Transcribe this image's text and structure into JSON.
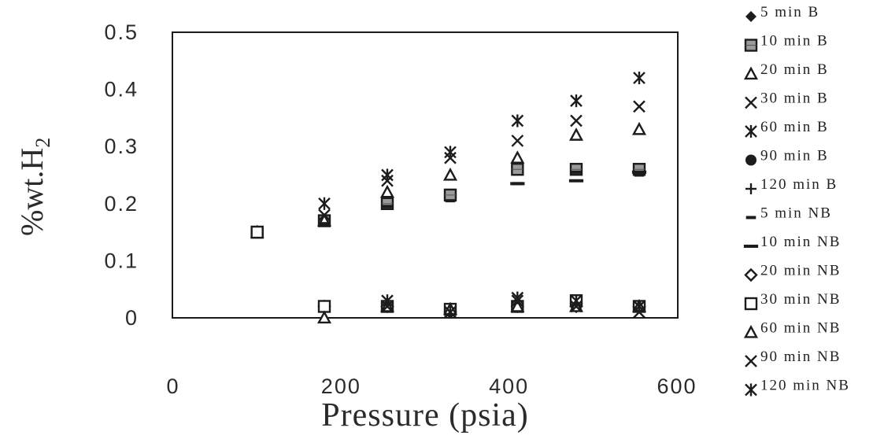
{
  "chart_data": {
    "type": "scatter",
    "title": "",
    "xlabel": "Pressure (psia)",
    "ylabel_main": "%wt.H",
    "ylabel_sub": "2",
    "xlim": [
      0,
      600
    ],
    "ylim": [
      0,
      0.5
    ],
    "x_ticks": [
      "0",
      "200",
      "400",
      "600"
    ],
    "y_ticks": [
      "0",
      "0.1",
      "0.2",
      "0.3",
      "0.4",
      "0.5"
    ],
    "grid": false,
    "legend_position": "right",
    "x": [
      100,
      180,
      255,
      330,
      410,
      480,
      555
    ],
    "series": [
      {
        "name": "5 min B",
        "marker": "diamond-filled",
        "values": [
          0.15,
          null,
          null,
          null,
          null,
          null,
          null
        ]
      },
      {
        "name": "10 min B",
        "marker": "square-hatched",
        "values": [
          0.15,
          0.17,
          0.2,
          0.215,
          0.26,
          0.26,
          0.26
        ]
      },
      {
        "name": "20 min B",
        "marker": "triangle-open",
        "values": [
          0.15,
          0.17,
          0.22,
          0.25,
          0.28,
          0.32,
          0.33
        ]
      },
      {
        "name": "30 min B",
        "marker": "x",
        "values": [
          0.15,
          0.18,
          0.24,
          0.28,
          0.31,
          0.345,
          0.37
        ]
      },
      {
        "name": "60 min B",
        "marker": "asterisk",
        "values": [
          0.15,
          0.2,
          0.25,
          0.29,
          0.345,
          0.38,
          0.42
        ]
      },
      {
        "name": "90 min B",
        "marker": "circle-filled",
        "values": [
          0.15,
          null,
          null,
          null,
          null,
          null,
          null
        ]
      },
      {
        "name": "120 min B",
        "marker": "plus",
        "values": [
          0.15,
          null,
          null,
          null,
          null,
          null,
          null
        ]
      },
      {
        "name": "5 min NB",
        "marker": "dash-short",
        "values": [
          0.15,
          0.165,
          0.195,
          0.205,
          0.235,
          0.255,
          0.25
        ]
      },
      {
        "name": "10 min NB",
        "marker": "dash-long",
        "values": [
          null,
          null,
          null,
          null,
          0.235,
          0.24,
          0.255
        ]
      },
      {
        "name": "20 min NB",
        "marker": "diamond-open",
        "values": [
          null,
          0.02,
          0.02,
          0.01,
          0.02,
          0.02,
          0.02
        ]
      },
      {
        "name": "30 min NB",
        "marker": "square-open",
        "values": [
          0.15,
          0.02,
          0.02,
          0.015,
          0.02,
          0.03,
          0.02
        ]
      },
      {
        "name": "60 min NB",
        "marker": "triangle-open",
        "values": [
          null,
          0.0,
          0.02,
          0.015,
          0.02,
          0.02,
          0.02
        ]
      },
      {
        "name": "90 min NB",
        "marker": "x",
        "values": [
          null,
          null,
          0.02,
          0.01,
          0.03,
          0.02,
          0.01
        ]
      },
      {
        "name": "120 min NB",
        "marker": "asterisk",
        "values": [
          null,
          null,
          0.03,
          0.01,
          0.035,
          0.03,
          0.02
        ]
      }
    ]
  }
}
